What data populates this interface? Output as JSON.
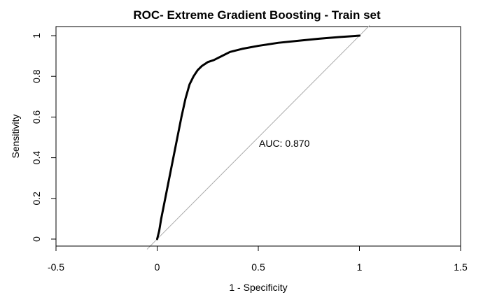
{
  "chart_data": {
    "type": "line",
    "title": "ROC- Extreme Gradient Boosting - Train set",
    "xlabel": "1 - Specificity",
    "ylabel": "Sensitivity",
    "xlim": [
      -0.5,
      1.5
    ],
    "ylim": [
      0,
      1
    ],
    "xticks": [
      "-0.5",
      "0",
      "0.5",
      "1",
      "1.5"
    ],
    "yticks": [
      "0",
      "0.2",
      "0.4",
      "0.6",
      "0.8",
      "1"
    ],
    "annotation": "AUC: 0.870",
    "grid": false,
    "legend": "none",
    "series": [
      {
        "x": [
          0,
          0.01,
          0.02,
          0.04,
          0.06,
          0.08,
          0.1,
          0.12,
          0.14,
          0.16,
          0.18,
          0.2,
          0.22,
          0.25,
          0.28,
          0.32,
          0.36,
          0.42,
          0.5,
          0.6,
          0.7,
          0.8,
          0.9,
          1.0
        ],
        "y": [
          0,
          0.04,
          0.1,
          0.2,
          0.3,
          0.4,
          0.5,
          0.6,
          0.69,
          0.76,
          0.8,
          0.83,
          0.85,
          0.87,
          0.88,
          0.9,
          0.92,
          0.935,
          0.95,
          0.965,
          0.975,
          0.985,
          0.993,
          1.0
        ]
      }
    ],
    "reference_line": {
      "x": [
        -0.05,
        1.05
      ],
      "y": [
        -0.05,
        1.05
      ]
    }
  }
}
